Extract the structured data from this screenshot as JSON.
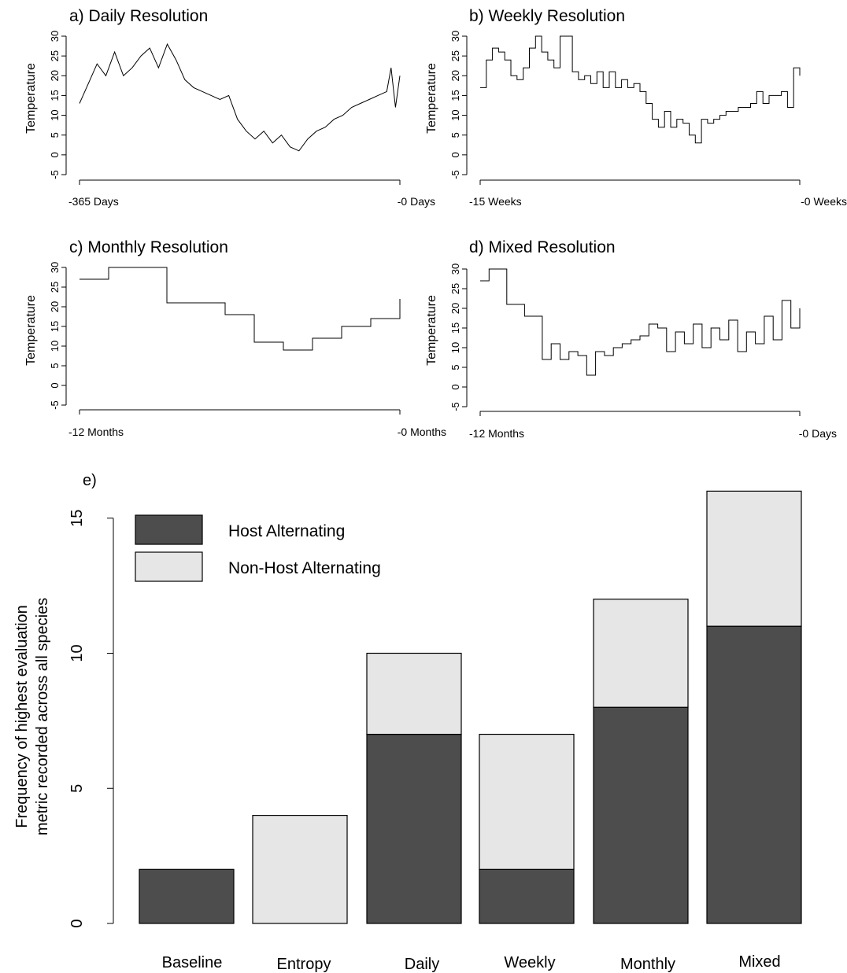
{
  "chart_data": [
    {
      "panel": "a",
      "type": "line",
      "title": "a) Daily Resolution",
      "ylabel": "Temperature",
      "ylim": [
        -5,
        30
      ],
      "yticks": [
        "-5",
        "0",
        "5",
        "10",
        "15",
        "20",
        "25",
        "30"
      ],
      "x_start_label": "-365 Days",
      "x_end_label": "-0 Days",
      "x": [
        0,
        10,
        20,
        30,
        40,
        50,
        60,
        70,
        80,
        90,
        100,
        110,
        120,
        130,
        140,
        150,
        160,
        170,
        180,
        190,
        200,
        210,
        220,
        230,
        240,
        250,
        260,
        270,
        280,
        290,
        300,
        310,
        320,
        330,
        340,
        350,
        355,
        360,
        365
      ],
      "y": [
        13,
        18,
        23,
        20,
        26,
        20,
        22,
        25,
        27,
        22,
        28,
        24,
        19,
        17,
        16,
        15,
        14,
        15,
        9,
        6,
        4,
        6,
        3,
        5,
        2,
        1,
        4,
        6,
        7,
        9,
        10,
        12,
        13,
        14,
        15,
        16,
        22,
        12,
        20
      ]
    },
    {
      "panel": "b",
      "type": "line",
      "title": "b) Weekly Resolution",
      "ylabel": "Temperature",
      "ylim": [
        -5,
        30
      ],
      "yticks": [
        "-5",
        "0",
        "5",
        "10",
        "15",
        "20",
        "25",
        "30"
      ],
      "x_start_label": "-15 Weeks",
      "x_end_label": "-0 Weeks",
      "x": [
        0,
        1,
        2,
        3,
        4,
        5,
        6,
        7,
        8,
        9,
        10,
        11,
        12,
        13,
        14,
        15,
        16,
        17,
        18,
        19,
        20,
        21,
        22,
        23,
        24,
        25,
        26,
        27,
        28,
        29,
        30,
        31,
        32,
        33,
        34,
        35,
        36,
        37,
        38,
        39,
        40,
        41,
        42,
        43,
        44,
        45,
        46,
        47,
        48,
        49,
        50,
        51,
        52
      ],
      "y": [
        17,
        24,
        27,
        26,
        24,
        20,
        19,
        22,
        27,
        30,
        26,
        24,
        22,
        30,
        30,
        21,
        19,
        20,
        18,
        21,
        17,
        21,
        17,
        19,
        17,
        18,
        16,
        13,
        9,
        7,
        11,
        7,
        9,
        8,
        5,
        3,
        9,
        8,
        9,
        10,
        11,
        11,
        12,
        12,
        13,
        16,
        13,
        15,
        15,
        16,
        12,
        22,
        20
      ]
    },
    {
      "panel": "c",
      "type": "line",
      "title": "c) Monthly Resolution",
      "ylabel": "Temperature",
      "ylim": [
        -5,
        30
      ],
      "yticks": [
        "-5",
        "0",
        "5",
        "10",
        "15",
        "20",
        "25",
        "30"
      ],
      "x_start_label": "-12 Months",
      "x_end_label": "-0 Months",
      "x": [
        0,
        1,
        2,
        3,
        4,
        5,
        6,
        7,
        8,
        9,
        10,
        11
      ],
      "y": [
        27,
        30,
        30,
        21,
        21,
        18,
        11,
        9,
        12,
        15,
        17,
        22
      ]
    },
    {
      "panel": "d",
      "type": "line",
      "title": "d) Mixed Resolution",
      "ylabel": "Temperature",
      "ylim": [
        -5,
        30
      ],
      "yticks": [
        "-5",
        "0",
        "5",
        "10",
        "15",
        "20",
        "25",
        "30"
      ],
      "x_start_label": "-12 Months",
      "x_end_label": "-0 Days",
      "x": [
        0,
        1,
        2,
        3,
        4,
        5,
        6,
        7,
        8,
        9,
        10,
        11,
        12,
        13,
        14,
        15,
        16,
        17,
        18,
        19,
        20,
        21,
        22,
        23,
        24,
        25,
        26,
        27,
        28,
        29,
        30,
        31,
        32,
        33,
        34,
        35,
        36
      ],
      "y": [
        27,
        30,
        30,
        21,
        21,
        18,
        18,
        7,
        11,
        7,
        9,
        8,
        3,
        9,
        8,
        10,
        11,
        12,
        13,
        16,
        15,
        9,
        14,
        11,
        16,
        10,
        15,
        12,
        17,
        9,
        14,
        11,
        18,
        12,
        22,
        15,
        20
      ]
    },
    {
      "panel": "e",
      "type": "bar",
      "stacked": true,
      "title": "e)",
      "ylabel": "Frequency of highest evaluation metric recorded across all species",
      "ylabel_lines": [
        "Frequency of highest evaluation",
        "metric recorded across all species"
      ],
      "ylim": [
        0,
        16
      ],
      "yticks": [
        "0",
        "5",
        "10",
        "15"
      ],
      "categories": [
        "Baseline",
        "Entropy",
        "Daily",
        "Weekly",
        "Monthly",
        "Mixed"
      ],
      "series": [
        {
          "name": "Host Alternating",
          "color": "#4d4d4d",
          "values": [
            2,
            0,
            7,
            2,
            8,
            11
          ]
        },
        {
          "name": "Non-Host Alternating",
          "color": "#e6e6e6",
          "values": [
            0,
            4,
            3,
            5,
            4,
            5
          ]
        }
      ],
      "legend_placement": "top-left"
    }
  ]
}
